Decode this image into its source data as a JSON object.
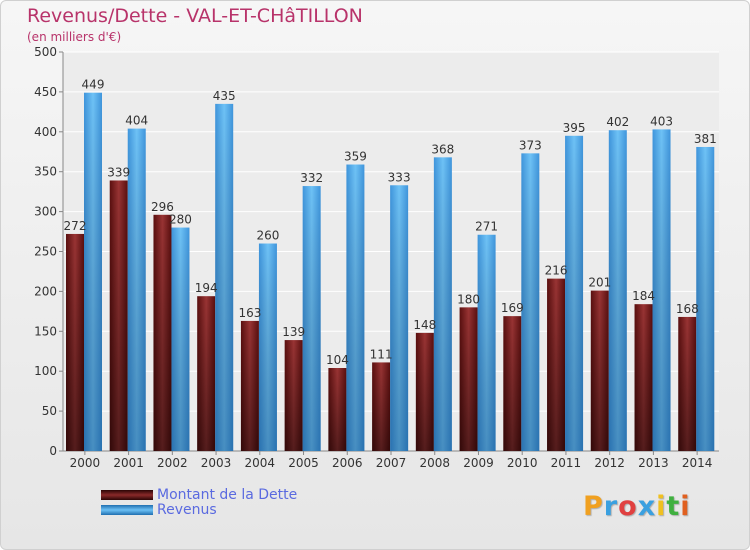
{
  "chart_data": {
    "type": "bar",
    "title": "Revenus/Dette - VAL-ET-CHâTILLON",
    "subtitle": "(en milliers d'€)",
    "categories": [
      "2000",
      "2001",
      "2002",
      "2003",
      "2004",
      "2005",
      "2006",
      "2007",
      "2008",
      "2009",
      "2010",
      "2011",
      "2012",
      "2013",
      "2014"
    ],
    "series": [
      {
        "name": "Montant de la Dette",
        "color": "#7a1c1c",
        "values": [
          272,
          339,
          296,
          194,
          163,
          139,
          104,
          111,
          148,
          180,
          169,
          216,
          201,
          184,
          168
        ]
      },
      {
        "name": "Revenus",
        "color": "#4aa3e8",
        "values": [
          449,
          404,
          280,
          435,
          260,
          332,
          359,
          333,
          368,
          271,
          373,
          395,
          402,
          403,
          381
        ]
      }
    ],
    "ylim": [
      0,
      500
    ],
    "yticks": [
      0,
      50,
      100,
      150,
      200,
      250,
      300,
      350,
      400,
      450,
      500
    ],
    "grid": true,
    "legend_position": "bottom-left"
  },
  "logo": {
    "letters": [
      "P",
      "r",
      "o",
      "x",
      "i",
      "t",
      "i"
    ],
    "colors": [
      "#f0a020",
      "#3aa0e0",
      "#e04040",
      "#3aa0e0",
      "#f0c020",
      "#40b040",
      "#e06020"
    ]
  }
}
